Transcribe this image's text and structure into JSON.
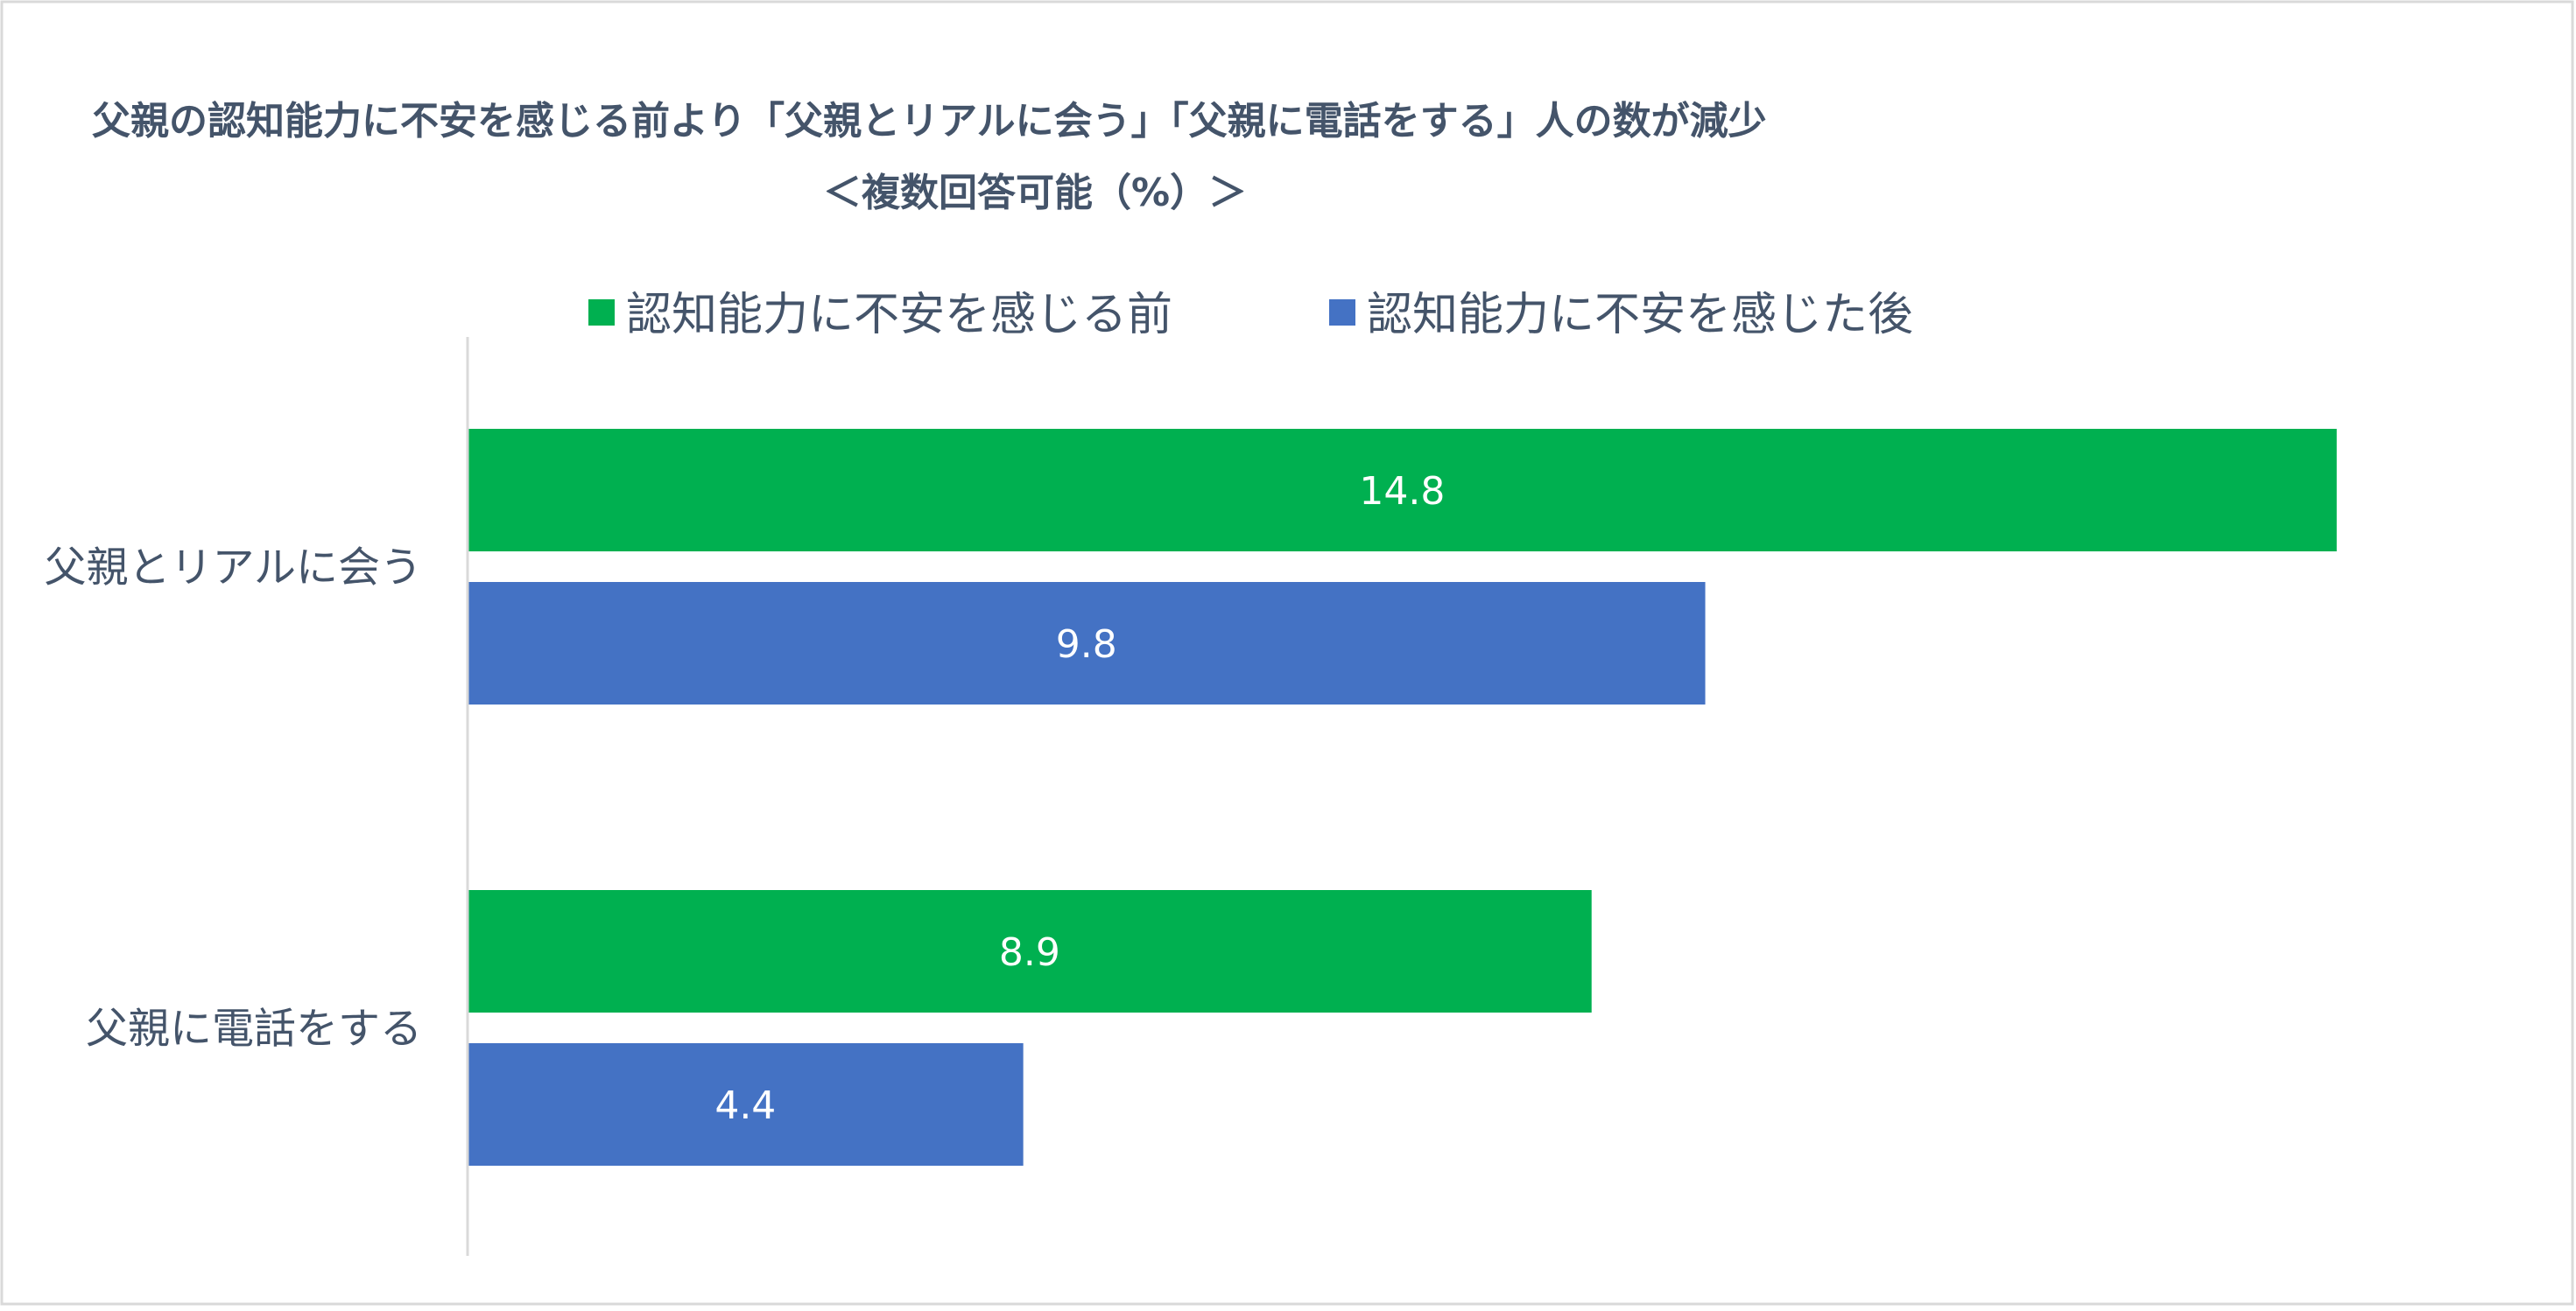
{
  "chart_data": {
    "type": "bar",
    "orientation": "horizontal",
    "title": "父親の認知能力に不安を感じる前より「父親とリアルに会う」「父親に電話をする」人の数が減少",
    "subtitle": "＜複数回答可能（%）＞",
    "categories": [
      "父親とリアルに会う",
      "父親に電話をする"
    ],
    "series": [
      {
        "name": "認知能力に不安を感じる前",
        "values": [
          14.8,
          8.9
        ],
        "color": "#00b050"
      },
      {
        "name": "認知能力に不安を感じた後",
        "values": [
          9.8,
          4.4
        ],
        "color": "#4472c4"
      }
    ],
    "xlim": [
      0,
      15.1
    ],
    "grid": false,
    "legend": "top"
  }
}
